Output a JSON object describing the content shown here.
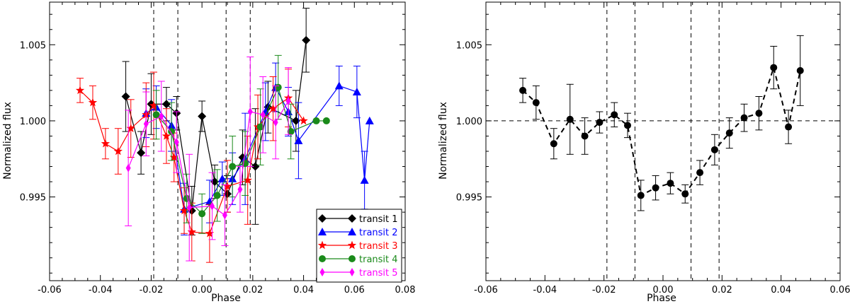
{
  "chart_data": [
    {
      "type": "line",
      "title": "",
      "xlabel": "Phase",
      "ylabel": "Normalized flux",
      "xlim": [
        -0.06,
        0.08
      ],
      "ylim": [
        0.9895,
        1.0078
      ],
      "xticks": [
        -0.06,
        -0.04,
        -0.02,
        0.0,
        0.02,
        0.04,
        0.06,
        0.08
      ],
      "xtick_labels": [
        "-0.06",
        "-0.04",
        "-0.02",
        "0.00",
        "0.02",
        "0.04",
        "0.06",
        "0.08"
      ],
      "yticks": [
        0.995,
        1.0,
        1.005
      ],
      "ytick_labels": [
        "0.995",
        "1.000",
        "1.005"
      ],
      "vlines": [
        -0.019,
        -0.0095,
        0.0095,
        0.019
      ],
      "legend_position": "bottom-right",
      "series": [
        {
          "name": "transit 1",
          "color": "#000000",
          "marker": "diamond",
          "points": [
            {
              "x": -0.03,
              "y": 1.0016,
              "err": 0.0023
            },
            {
              "x": -0.024,
              "y": 0.9979,
              "err": 0.0014
            },
            {
              "x": -0.02,
              "y": 1.0011,
              "err": 0.002
            },
            {
              "x": -0.014,
              "y": 1.0011,
              "err": 0.0011
            },
            {
              "x": -0.01,
              "y": 1.0005,
              "err": 0.0011
            },
            {
              "x": -0.004,
              "y": 0.9941,
              "err": 0.0016
            },
            {
              "x": 0.0,
              "y": 1.0003,
              "err": 0.001
            },
            {
              "x": 0.005,
              "y": 0.996,
              "err": 0.0011
            },
            {
              "x": 0.01,
              "y": 0.9952,
              "err": 0.0012
            },
            {
              "x": 0.016,
              "y": 0.9976,
              "err": 0.0018
            },
            {
              "x": 0.021,
              "y": 0.997,
              "err": 0.0038
            },
            {
              "x": 0.026,
              "y": 1.0009,
              "err": 0.0017
            },
            {
              "x": 0.037,
              "y": 1.0,
              "err": 0.002
            },
            {
              "x": 0.041,
              "y": 1.0053,
              "err": 0.0021
            }
          ]
        },
        {
          "name": "transit 2",
          "color": "#0000ff",
          "marker": "triangle",
          "points": [
            {
              "x": -0.022,
              "y": 1.0005,
              "err": 0.0016
            },
            {
              "x": -0.018,
              "y": 1.0009,
              "err": 0.0014
            },
            {
              "x": -0.012,
              "y": 0.9997,
              "err": 0.0017
            },
            {
              "x": -0.007,
              "y": 0.9942,
              "err": 0.0017
            },
            {
              "x": 0.003,
              "y": 0.9947,
              "err": 0.0014
            },
            {
              "x": 0.008,
              "y": 0.9962,
              "err": 0.0011
            },
            {
              "x": 0.012,
              "y": 0.9962,
              "err": 0.0017
            },
            {
              "x": 0.017,
              "y": 0.9975,
              "err": 0.003
            },
            {
              "x": 0.025,
              "y": 1.0006,
              "err": 0.0019
            },
            {
              "x": 0.029,
              "y": 1.0022,
              "err": 0.0016
            },
            {
              "x": 0.034,
              "y": 1.0006,
              "err": 0.0016
            },
            {
              "x": 0.038,
              "y": 0.9987,
              "err": 0.0025
            },
            {
              "x": 0.054,
              "y": 1.0023,
              "err": 0.0013
            },
            {
              "x": 0.061,
              "y": 1.0019,
              "err": 0.0017
            },
            {
              "x": 0.064,
              "y": 0.9961,
              "err": 0.0019
            },
            {
              "x": 0.066,
              "y": 1.0,
              "err": 0.0
            }
          ]
        },
        {
          "name": "transit 3",
          "color": "#ff0000",
          "marker": "star",
          "points": [
            {
              "x": -0.048,
              "y": 1.002,
              "err": 0.0008
            },
            {
              "x": -0.043,
              "y": 1.0012,
              "err": 0.0011
            },
            {
              "x": -0.038,
              "y": 0.9985,
              "err": 0.001
            },
            {
              "x": -0.033,
              "y": 0.998,
              "err": 0.0015
            },
            {
              "x": -0.028,
              "y": 0.9995,
              "err": 0.0019
            },
            {
              "x": -0.022,
              "y": 1.0004,
              "err": 0.0021
            },
            {
              "x": -0.019,
              "y": 1.001,
              "err": 0.0022
            },
            {
              "x": -0.014,
              "y": 0.999,
              "err": 0.0018
            },
            {
              "x": -0.011,
              "y": 0.9976,
              "err": 0.0016
            },
            {
              "x": -0.007,
              "y": 0.9941,
              "err": 0.0015
            },
            {
              "x": -0.004,
              "y": 0.9927,
              "err": 0.0019
            },
            {
              "x": 0.003,
              "y": 0.9926,
              "err": 0.0019
            },
            {
              "x": 0.01,
              "y": 0.9957,
              "err": 0.0017
            },
            {
              "x": 0.018,
              "y": 0.9961,
              "err": 0.0029
            },
            {
              "x": 0.022,
              "y": 0.9996,
              "err": 0.0021
            },
            {
              "x": 0.028,
              "y": 1.0008,
              "err": 0.0021
            },
            {
              "x": 0.034,
              "y": 1.0015,
              "err": 0.0019
            },
            {
              "x": 0.04,
              "y": 1.0,
              "err": 0.0
            }
          ]
        },
        {
          "name": "transit 4",
          "color": "#1a8a1a",
          "marker": "circle",
          "points": [
            {
              "x": -0.018,
              "y": 1.0004,
              "err": 0.0016
            },
            {
              "x": -0.012,
              "y": 0.9993,
              "err": 0.0019
            },
            {
              "x": -0.006,
              "y": 0.9949,
              "err": 0.0016
            },
            {
              "x": 0.0,
              "y": 0.9939,
              "err": 0.0013
            },
            {
              "x": 0.006,
              "y": 0.9951,
              "err": 0.0017
            },
            {
              "x": 0.012,
              "y": 0.997,
              "err": 0.002
            },
            {
              "x": 0.017,
              "y": 0.9972,
              "err": 0.0021
            },
            {
              "x": 0.023,
              "y": 0.9996,
              "err": 0.0025
            },
            {
              "x": 0.03,
              "y": 1.0022,
              "err": 0.0021
            },
            {
              "x": 0.035,
              "y": 0.9993,
              "err": 0.0018
            },
            {
              "x": 0.045,
              "y": 1.0,
              "err": 0.0
            },
            {
              "x": 0.049,
              "y": 1.0,
              "err": 0.0
            }
          ]
        },
        {
          "name": "transit 5",
          "color": "#ff00ff",
          "marker": "thin-diamond",
          "points": [
            {
              "x": -0.029,
              "y": 0.9969,
              "err": 0.0038
            },
            {
              "x": -0.022,
              "y": 0.9998,
              "err": 0.0021
            },
            {
              "x": -0.016,
              "y": 1.0003,
              "err": 0.0023
            },
            {
              "x": -0.01,
              "y": 0.9986,
              "err": 0.002
            },
            {
              "x": -0.005,
              "y": 0.9943,
              "err": 0.0035
            },
            {
              "x": 0.004,
              "y": 0.9944,
              "err": 0.0022
            },
            {
              "x": 0.009,
              "y": 0.9938,
              "err": 0.002
            },
            {
              "x": 0.015,
              "y": 0.9955,
              "err": 0.0015
            },
            {
              "x": 0.019,
              "y": 1.0006,
              "err": 0.0036
            },
            {
              "x": 0.024,
              "y": 1.0004,
              "err": 0.0025
            },
            {
              "x": 0.029,
              "y": 0.9999,
              "err": 0.0024
            },
            {
              "x": 0.034,
              "y": 1.0013,
              "err": 0.0022
            }
          ]
        }
      ]
    },
    {
      "type": "line",
      "title": "",
      "xlabel": "Phase",
      "ylabel": "Normalized flux",
      "xlim": [
        -0.06,
        0.06
      ],
      "ylim": [
        0.9895,
        1.0078
      ],
      "xticks": [
        -0.06,
        -0.04,
        -0.02,
        0.0,
        0.02,
        0.04,
        0.06
      ],
      "xtick_labels": [
        "-0.06",
        "-0.04",
        "-0.02",
        "0.00",
        "0.02",
        "0.04",
        "0.06"
      ],
      "yticks": [
        0.995,
        1.0,
        1.005
      ],
      "ytick_labels": [
        "0.995",
        "1.000",
        "1.005"
      ],
      "vlines": [
        -0.019,
        -0.0095,
        0.0095,
        0.019
      ],
      "hline": 1.0,
      "series": [
        {
          "name": "average",
          "color": "#000000",
          "marker": "circle",
          "linestyle": "dashed",
          "points": [
            {
              "x": -0.0475,
              "y": 1.002,
              "err": 0.0008
            },
            {
              "x": -0.043,
              "y": 1.0012,
              "err": 0.0011
            },
            {
              "x": -0.037,
              "y": 0.9985,
              "err": 0.001
            },
            {
              "x": -0.0315,
              "y": 1.0001,
              "err": 0.0023
            },
            {
              "x": -0.0265,
              "y": 0.999,
              "err": 0.0012
            },
            {
              "x": -0.0215,
              "y": 0.9999,
              "err": 0.0007
            },
            {
              "x": -0.0165,
              "y": 1.0004,
              "err": 0.0008
            },
            {
              "x": -0.012,
              "y": 0.9997,
              "err": 0.0008
            },
            {
              "x": -0.0075,
              "y": 0.9951,
              "err": 0.001
            },
            {
              "x": -0.0025,
              "y": 0.9956,
              "err": 0.0008
            },
            {
              "x": 0.0025,
              "y": 0.9959,
              "err": 0.0007
            },
            {
              "x": 0.0075,
              "y": 0.9952,
              "err": 0.0006
            },
            {
              "x": 0.0125,
              "y": 0.9966,
              "err": 0.0008
            },
            {
              "x": 0.0175,
              "y": 0.9981,
              "err": 0.001
            },
            {
              "x": 0.0225,
              "y": 0.9992,
              "err": 0.001
            },
            {
              "x": 0.0275,
              "y": 1.0002,
              "err": 0.0009
            },
            {
              "x": 0.0325,
              "y": 1.0005,
              "err": 0.0011
            },
            {
              "x": 0.0375,
              "y": 1.0035,
              "err": 0.0014
            },
            {
              "x": 0.0425,
              "y": 0.9996,
              "err": 0.0011
            },
            {
              "x": 0.0465,
              "y": 1.0033,
              "err": 0.0023
            }
          ]
        }
      ]
    }
  ]
}
